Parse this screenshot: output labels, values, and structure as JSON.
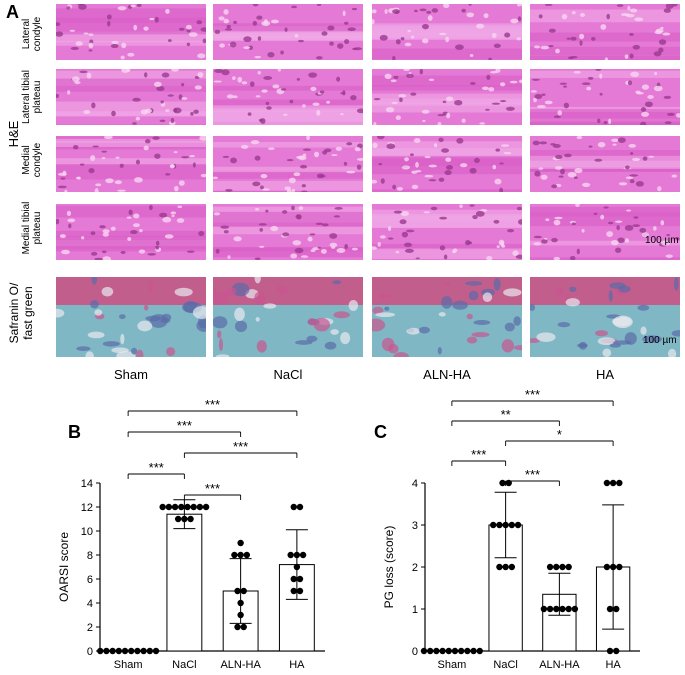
{
  "panel_a": {
    "letter": "A",
    "group_label": "H&E",
    "stain_label": "Safranin O/\nfast green",
    "row_labels": [
      "Lateral\ncondyle",
      "Lateral tibial\nplateau",
      "Medial\ncondyle",
      "Medial tibial\nplateau"
    ],
    "columns": [
      "Sham",
      "NaCl",
      "ALN-HA",
      "HA"
    ],
    "scale_bar_label": "100 µm"
  },
  "chart_data": [
    {
      "panel": "B",
      "type": "bar",
      "categories": [
        "Sham",
        "NaCl",
        "ALN-HA",
        "HA"
      ],
      "ylabel": "OARSI score",
      "ylim": [
        0,
        14
      ],
      "yticks": [
        0,
        2,
        4,
        6,
        8,
        10,
        12,
        14
      ],
      "means": [
        0,
        11.4,
        5.0,
        7.2
      ],
      "errors": [
        0,
        1.2,
        2.7,
        2.9
      ],
      "points": [
        [
          0,
          0,
          0,
          0,
          0,
          0,
          0,
          0,
          0,
          0
        ],
        [
          12,
          12,
          12,
          12,
          12,
          12,
          12,
          12,
          11,
          11,
          11
        ],
        [
          9,
          8,
          8,
          8,
          5,
          5,
          4,
          3,
          2,
          2
        ],
        [
          12,
          12,
          8,
          8,
          8,
          7,
          6,
          6,
          5,
          5
        ]
      ],
      "significance": [
        {
          "from": 0,
          "to": 3,
          "label": "***"
        },
        {
          "from": 0,
          "to": 2,
          "label": "***"
        },
        {
          "from": 1,
          "to": 3,
          "label": "***"
        },
        {
          "from": 0,
          "to": 1,
          "label": "***"
        },
        {
          "from": 1,
          "to": 2,
          "label": "***"
        }
      ]
    },
    {
      "panel": "C",
      "type": "bar",
      "categories": [
        "Sham",
        "NaCl",
        "ALN-HA",
        "HA"
      ],
      "ylabel": "PG loss (score)",
      "ylim": [
        0,
        4
      ],
      "yticks": [
        0,
        1,
        2,
        3,
        4
      ],
      "means": [
        0,
        3.0,
        1.35,
        2.0
      ],
      "errors": [
        0,
        0.78,
        0.5,
        1.48
      ],
      "points": [
        [
          0,
          0,
          0,
          0,
          0,
          0,
          0,
          0,
          0,
          0
        ],
        [
          4,
          4,
          3,
          3,
          3,
          3,
          3,
          2,
          2,
          2
        ],
        [
          2,
          2,
          2,
          2,
          1,
          1,
          1,
          1,
          1,
          1
        ],
        [
          4,
          4,
          4,
          2,
          2,
          2,
          1,
          1,
          0,
          0
        ]
      ],
      "significance": [
        {
          "from": 0,
          "to": 3,
          "label": "***"
        },
        {
          "from": 0,
          "to": 2,
          "label": "**"
        },
        {
          "from": 1,
          "to": 3,
          "label": "*"
        },
        {
          "from": 0,
          "to": 1,
          "label": "***"
        },
        {
          "from": 1,
          "to": 2,
          "label": "***"
        }
      ]
    }
  ],
  "chart_letters": [
    "B",
    "C"
  ]
}
